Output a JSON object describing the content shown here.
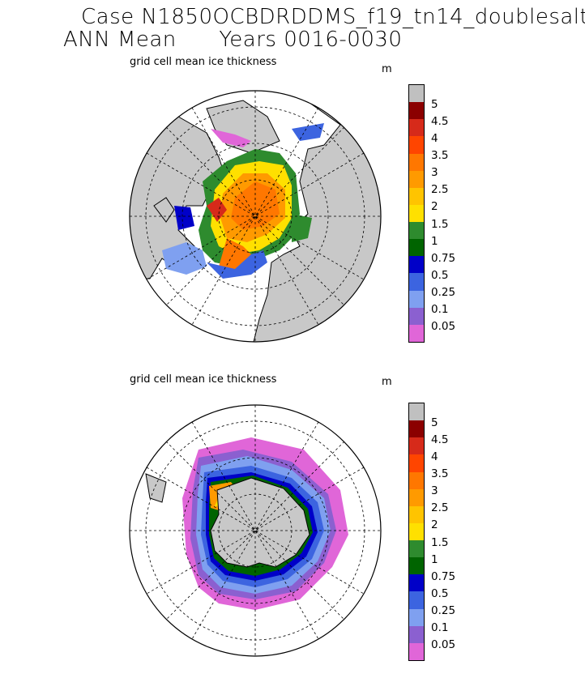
{
  "header": {
    "case_line": "Case N1850OCBDRDDMS_f19_tn14_doublesalt",
    "mean_line": "ANN Mean      Years 0016-0030"
  },
  "panels": [
    {
      "title": "grid cell mean ice thickness",
      "unit": "m",
      "hemisphere": "north"
    },
    {
      "title": "grid cell mean ice thickness",
      "unit": "m",
      "hemisphere": "south"
    }
  ],
  "colorbar": {
    "levels": [
      "5",
      "4.5",
      "4",
      "3.5",
      "3",
      "2.5",
      "2",
      "1.5",
      "1",
      "0.75",
      "0.5",
      "0.25",
      "0.1",
      "0.05"
    ],
    "colors": [
      "#c0c0c0",
      "#8b0000",
      "#d62a1a",
      "#ff4500",
      "#ff7700",
      "#ff9a00",
      "#ffc400",
      "#ffe000",
      "#2e8b2e",
      "#006400",
      "#0000c8",
      "#3c64e0",
      "#7fa0f0",
      "#8b60d0",
      "#e066d8"
    ]
  }
}
